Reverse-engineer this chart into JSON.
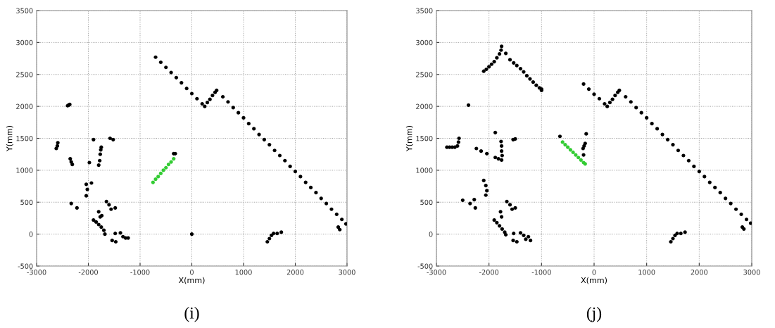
{
  "chart_data": [
    {
      "type": "scatter",
      "xlabel": "X(mm)",
      "ylabel": "Y(mm)",
      "xlim": [
        -3000,
        3000
      ],
      "ylim": [
        -500,
        3500
      ],
      "xticks": [
        -3000,
        -2000,
        -1000,
        0,
        1000,
        2000,
        3000
      ],
      "yticks": [
        -500,
        0,
        500,
        1000,
        1500,
        2000,
        2500,
        3000,
        3500
      ],
      "grid": true,
      "marker": "circle",
      "annotations": [
        "(i)"
      ],
      "series": [
        {
          "color": "#000000",
          "x": [
            -700,
            -600,
            -500,
            -400,
            -300,
            -200,
            -100,
            0,
            100,
            200,
            250,
            300,
            350,
            400,
            450,
            480,
            600,
            700,
            800,
            900,
            1000,
            1100,
            1200,
            1300,
            1400,
            1500,
            1600,
            1700,
            1800,
            1900,
            2000,
            2100,
            2200,
            2300,
            2400,
            2500,
            2600,
            2700,
            2800,
            2900,
            2980,
            -2400,
            -2380,
            -2360,
            -2620,
            -2600,
            -2590,
            -2350,
            -2330,
            -2310,
            -1900,
            -1980,
            -1580,
            -1520,
            -1800,
            -1780,
            -1770,
            -1760,
            -1750,
            -2040,
            -2020,
            -2040,
            -1940,
            -2330,
            -2220,
            -1650,
            -1600,
            -1560,
            -1480,
            -1800,
            -1770,
            -1740,
            -1900,
            -1850,
            -1800,
            -1750,
            -1700,
            -1680,
            -1480,
            -1540,
            -1470,
            -1380,
            -1330,
            -1280,
            -1230,
            0,
            1460,
            1500,
            1540,
            1580,
            1650,
            1730,
            2830,
            2860,
            -350,
            -320
          ],
          "values": [
            2770,
            2690,
            2610,
            2530,
            2450,
            2370,
            2280,
            2200,
            2120,
            2040,
            2000,
            2060,
            2110,
            2170,
            2220,
            2250,
            2150,
            2070,
            1980,
            1900,
            1820,
            1730,
            1650,
            1560,
            1480,
            1400,
            1310,
            1230,
            1150,
            1060,
            980,
            900,
            810,
            730,
            650,
            560,
            480,
            390,
            310,
            230,
            160,
            2010,
            2020,
            2030,
            1340,
            1380,
            1430,
            1180,
            1130,
            1090,
            1480,
            1120,
            1500,
            1480,
            1080,
            1150,
            1250,
            1320,
            1360,
            600,
            700,
            780,
            800,
            480,
            410,
            510,
            460,
            390,
            410,
            350,
            270,
            290,
            220,
            190,
            150,
            110,
            60,
            0,
            10,
            -100,
            -120,
            20,
            -40,
            -60,
            -60,
            0,
            -120,
            -70,
            -20,
            10,
            10,
            30,
            110,
            70,
            1260,
            1260
          ]
        },
        {
          "color": "#33cc33",
          "x": [
            -750,
            -700,
            -650,
            -600,
            -550,
            -500,
            -450,
            -400,
            -350
          ],
          "values": [
            810,
            860,
            900,
            950,
            1000,
            1040,
            1090,
            1130,
            1180
          ]
        }
      ]
    },
    {
      "type": "scatter",
      "xlabel": "X(mm)",
      "ylabel": "Y(mm)",
      "xlim": [
        -3000,
        3000
      ],
      "ylim": [
        -500,
        3500
      ],
      "xticks": [
        -3000,
        -2000,
        -1000,
        0,
        1000,
        2000,
        3000
      ],
      "yticks": [
        -500,
        0,
        500,
        1000,
        1500,
        2000,
        2500,
        3000,
        3500
      ],
      "grid": true,
      "marker": "circle",
      "annotations": [
        "(j)"
      ],
      "series": [
        {
          "color": "#000000",
          "x": [
            -200,
            -100,
            0,
            100,
            200,
            250,
            300,
            350,
            400,
            450,
            480,
            600,
            700,
            800,
            900,
            1000,
            1100,
            1200,
            1300,
            1400,
            1500,
            1600,
            1700,
            1800,
            1900,
            2000,
            2100,
            2200,
            2300,
            2400,
            2500,
            2600,
            2700,
            2800,
            2900,
            2980,
            -2100,
            -2050,
            -2000,
            -1950,
            -1900,
            -1850,
            -1800,
            -1770,
            -1760,
            -1680,
            -1600,
            -1530,
            -1470,
            -1400,
            -1340,
            -1280,
            -1220,
            -1160,
            -1100,
            -1040,
            -1000,
            -1000,
            -2390,
            -1880,
            -2800,
            -2750,
            -2700,
            -2650,
            -2600,
            -2580,
            -2570,
            -2240,
            -2150,
            -2040,
            -1880,
            -1820,
            -1760,
            -1750,
            -1760,
            -1760,
            -1770,
            -1540,
            -1500,
            -2100,
            -2060,
            -2040,
            -2060,
            -2500,
            -2360,
            -2280,
            -2260,
            -1660,
            -1600,
            -1560,
            -1500,
            -1780,
            -1760,
            -1900,
            -1850,
            -1800,
            -1750,
            -1700,
            -1680,
            -1530,
            -1540,
            -1470,
            -1400,
            -1340,
            -1300,
            -1250,
            -1210,
            -650,
            -200,
            -210,
            -190,
            -170,
            -150,
            1460,
            1500,
            1540,
            1580,
            1650,
            1730,
            2820,
            2850
          ],
          "values": [
            2350,
            2270,
            2190,
            2120,
            2040,
            2000,
            2060,
            2110,
            2170,
            2220,
            2250,
            2150,
            2070,
            1980,
            1900,
            1820,
            1730,
            1650,
            1560,
            1480,
            1400,
            1310,
            1230,
            1150,
            1060,
            980,
            900,
            810,
            730,
            650,
            560,
            480,
            390,
            310,
            230,
            170,
            2550,
            2580,
            2620,
            2660,
            2700,
            2760,
            2820,
            2880,
            2940,
            2830,
            2730,
            2680,
            2640,
            2590,
            2540,
            2480,
            2430,
            2380,
            2330,
            2290,
            2250,
            2270,
            2020,
            1590,
            1360,
            1360,
            1360,
            1360,
            1380,
            1440,
            1500,
            1340,
            1300,
            1260,
            1200,
            1180,
            1160,
            1230,
            1300,
            1380,
            1450,
            1480,
            1490,
            840,
            760,
            680,
            610,
            530,
            480,
            540,
            410,
            510,
            460,
            390,
            410,
            350,
            270,
            220,
            180,
            130,
            80,
            30,
            -10,
            10,
            -100,
            -120,
            20,
            -20,
            -80,
            -40,
            -100,
            1530,
            1240,
            1340,
            1380,
            1420,
            1570,
            -120,
            -70,
            -20,
            10,
            10,
            30,
            110,
            80
          ]
        },
        {
          "color": "#33cc33",
          "x": [
            -600,
            -550,
            -500,
            -450,
            -400,
            -350,
            -300,
            -250,
            -200,
            -170
          ],
          "values": [
            1440,
            1400,
            1360,
            1320,
            1280,
            1240,
            1200,
            1160,
            1120,
            1100
          ]
        }
      ]
    }
  ]
}
